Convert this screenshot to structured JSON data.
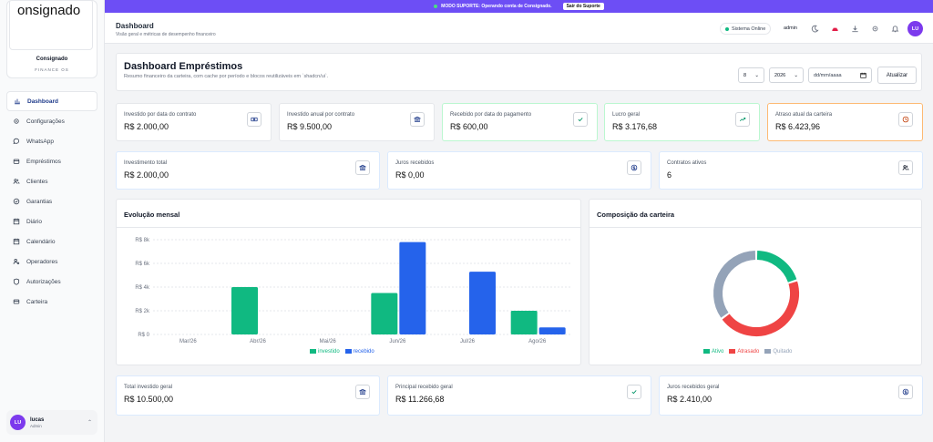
{
  "banner": {
    "text": "MODO SUPORTE: Operando conta de Consignado.",
    "button": "Sair do Suporte"
  },
  "brand": {
    "logo_text": "onsignado",
    "name": "Consignado",
    "sub": "FINANCE OS"
  },
  "nav": [
    {
      "label": "Dashboard",
      "icon": "dashboard-icon",
      "active": true
    },
    {
      "label": "Configurações",
      "icon": "gear-icon"
    },
    {
      "label": "WhatsApp",
      "icon": "chat-icon"
    },
    {
      "label": "Empréstimos",
      "icon": "wallet-icon"
    },
    {
      "label": "Clientes",
      "icon": "users-icon"
    },
    {
      "label": "Garantias",
      "icon": "check-circle-icon"
    },
    {
      "label": "Diário",
      "icon": "calendar-icon"
    },
    {
      "label": "Calendário",
      "icon": "calendar-icon"
    },
    {
      "label": "Operadores",
      "icon": "user-gear-icon"
    },
    {
      "label": "Autorizações",
      "icon": "shield-icon"
    },
    {
      "label": "Carteira",
      "icon": "card-icon"
    }
  ],
  "user": {
    "initials": "LU",
    "name": "lucas",
    "role": "Admin"
  },
  "header": {
    "title": "Dashboard",
    "subtitle": "Visão geral e métricas de desempenho financeiro",
    "status": "Sistema Online",
    "user": "admin",
    "avatar": "LU"
  },
  "dash": {
    "title": "Dashboard Empréstimos",
    "subtitle": "Resumo financeiro da carteira, com cache por período e blocos reutilizáveis em `shadcn/ui`.",
    "month": "8",
    "year": "2026",
    "date_placeholder": "dd/mm/aaaa",
    "refresh": "Atualizar"
  },
  "kpis_row1": [
    {
      "label": "Investido por data do contrato",
      "value": "R$ 2.000,00",
      "icon": "cash-icon",
      "accent": "#e5e7eb"
    },
    {
      "label": "Investido anual por contrato",
      "value": "R$ 9.500,00",
      "icon": "bank-icon",
      "accent": "#e5e7eb"
    },
    {
      "label": "Recebido por data do pagamento",
      "value": "R$ 600,00",
      "icon": "check-icon",
      "accent": "#bbf7d0"
    },
    {
      "label": "Lucro geral",
      "value": "R$ 3.176,68",
      "icon": "trend-up-icon",
      "accent": "#bbf7d0"
    },
    {
      "label": "Atraso atual da carteira",
      "value": "R$ 6.423,96",
      "icon": "clock-icon",
      "accent": "#fdba74"
    }
  ],
  "kpis_row2": [
    {
      "label": "Investimento total",
      "value": "R$ 2.000,00",
      "icon": "bank-icon"
    },
    {
      "label": "Juros recebidos",
      "value": "R$ 0,00",
      "icon": "coin-icon"
    },
    {
      "label": "Contratos ativos",
      "value": "6",
      "icon": "users-icon"
    }
  ],
  "kpis_row3": [
    {
      "label": "Total investido geral",
      "value": "R$ 10.500,00",
      "icon": "bank-icon"
    },
    {
      "label": "Principal recebido geral",
      "value": "R$ 11.266,68",
      "icon": "check-icon"
    },
    {
      "label": "Juros recebidos geral",
      "value": "R$ 2.410,00",
      "icon": "coin-icon"
    }
  ],
  "colors": {
    "investido": "#10b981",
    "recebido": "#2563eb",
    "ativo": "#10b981",
    "atrasado": "#ef4444",
    "quitado": "#94a3b8",
    "banner": "#6d4ef5"
  },
  "chart_data": [
    {
      "type": "bar",
      "title": "Evolução mensal",
      "categories": [
        "Mar/26",
        "Abr/26",
        "Mai/26",
        "Jun/26",
        "Jul/26",
        "Ago/26"
      ],
      "series": [
        {
          "name": "investido",
          "values": [
            0,
            4000,
            0,
            3500,
            0,
            2000
          ]
        },
        {
          "name": "recebido",
          "values": [
            0,
            0,
            0,
            7800,
            5300,
            600
          ]
        }
      ],
      "yticks": [
        "R$ 0",
        "R$ 2k",
        "R$ 4k",
        "R$ 6k",
        "R$ 8k"
      ],
      "ylim": [
        0,
        8000
      ],
      "grid": true,
      "legend": "bottom"
    },
    {
      "type": "pie",
      "title": "Composição da carteira",
      "labels": [
        "Ativo",
        "Atrasado",
        "Quitado"
      ],
      "values": [
        20,
        45,
        35
      ],
      "legend": "bottom"
    }
  ]
}
